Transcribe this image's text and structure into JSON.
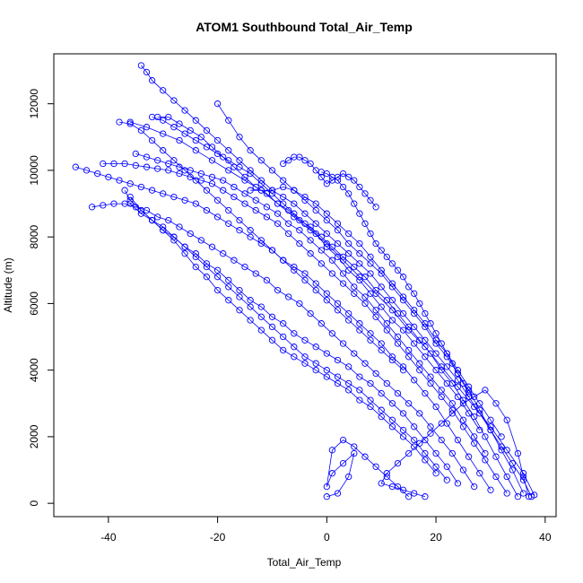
{
  "chart_data": {
    "type": "scatter",
    "title": "ATOM1 Southbound Total_Air_Temp",
    "xlabel": "Total_Air_Temp",
    "ylabel": "Altitude (m)",
    "xlim": [
      -50,
      42
    ],
    "ylim": [
      -400,
      13500
    ],
    "xticks": [
      -40,
      -20,
      0,
      20,
      40
    ],
    "yticks": [
      0,
      2000,
      4000,
      6000,
      8000,
      10000,
      12000
    ],
    "color": "#0000ff",
    "marker": "open-circle-with-lines",
    "grid": false,
    "legend": "none",
    "series": [
      {
        "x": [
          37.5,
          36,
          34,
          32,
          30,
          28,
          26,
          24,
          22,
          20,
          18,
          16,
          14,
          12,
          10,
          8,
          6,
          4,
          2,
          0,
          -2,
          -4,
          -6,
          -8,
          -10,
          -12,
          -14,
          -16,
          -18,
          -20,
          -22,
          -24,
          -26,
          -28,
          -30,
          -32,
          -33,
          -34
        ],
        "y": [
          200,
          700,
          1200,
          1700,
          2200,
          2700,
          3200,
          3700,
          4100,
          4500,
          4900,
          5300,
          5700,
          6100,
          6500,
          6900,
          7200,
          7500,
          7800,
          8100,
          8400,
          8700,
          9000,
          9200,
          9400,
          9700,
          10000,
          10300,
          10600,
          10900,
          11200,
          11500,
          11800,
          12100,
          12400,
          12700,
          12950,
          13150
        ]
      },
      {
        "x": [
          36,
          34,
          32,
          30,
          28,
          26,
          24,
          22,
          20,
          18,
          16,
          14,
          12,
          10,
          8,
          6,
          4,
          2,
          0,
          -2,
          -4,
          -6,
          -8,
          -10,
          -12,
          -14,
          -16,
          -18,
          -20
        ],
        "y": [
          300,
          1000,
          1600,
          2200,
          2800,
          3400,
          3900,
          4400,
          4800,
          5300,
          5700,
          6100,
          6500,
          6900,
          7200,
          7500,
          7800,
          8200,
          8500,
          8800,
          9100,
          9400,
          9700,
          10000,
          10300,
          10600,
          11000,
          11500,
          12000
        ]
      },
      {
        "x": [
          35,
          33,
          31,
          29,
          27,
          25,
          23,
          21,
          19,
          17,
          15,
          13,
          11,
          9,
          7,
          5,
          3,
          1,
          -1,
          -3,
          -5,
          -7,
          -9,
          -11,
          -13,
          -15,
          -17,
          -19,
          -21,
          -23,
          -25,
          -27,
          -29,
          -31
        ],
        "y": [
          200,
          800,
          1400,
          2000,
          2600,
          3100,
          3600,
          4000,
          4500,
          4900,
          5300,
          5700,
          6100,
          6400,
          6800,
          7100,
          7400,
          7700,
          8000,
          8300,
          8500,
          8800,
          9000,
          9300,
          9500,
          9800,
          10100,
          10400,
          10700,
          11000,
          11200,
          11400,
          11600,
          11600
        ]
      },
      {
        "x": [
          38,
          36,
          33,
          30,
          27,
          24,
          21,
          18,
          15,
          12,
          9,
          6,
          3,
          0,
          -3,
          -6,
          -9,
          -12,
          -15,
          -18,
          -21,
          -24,
          -27,
          -30,
          -33,
          -36
        ],
        "y": [
          250,
          900,
          1600,
          2300,
          2900,
          3500,
          4100,
          4700,
          5200,
          5800,
          6300,
          6800,
          7300,
          7800,
          8200,
          8600,
          9000,
          9400,
          9700,
          10000,
          10300,
          10600,
          10900,
          11100,
          11300,
          11450
        ]
      },
      {
        "x": [
          33,
          31,
          29,
          27,
          25,
          23,
          21,
          19,
          17,
          15,
          13,
          11,
          9,
          7,
          5,
          3,
          1,
          -1,
          -3,
          -5,
          -7,
          -9,
          -11,
          -13,
          -15,
          -17,
          -19,
          -21,
          -23,
          -25,
          -27,
          -29,
          -31,
          -33,
          -35,
          -37,
          -39,
          -41
        ],
        "y": [
          300,
          800,
          1300,
          1800,
          2300,
          2800,
          3200,
          3600,
          4000,
          4400,
          4800,
          5200,
          5600,
          6000,
          6300,
          6600,
          6900,
          7200,
          7500,
          7800,
          8100,
          8400,
          8600,
          8800,
          9000,
          9200,
          9400,
          9600,
          9700,
          9800,
          9900,
          10000,
          10050,
          10100,
          10150,
          10200,
          10200,
          10200
        ]
      },
      {
        "x": [
          30,
          28,
          26,
          24,
          22,
          20,
          18,
          16,
          14,
          12,
          10,
          8,
          6,
          4,
          2,
          0,
          -2,
          -4,
          -6,
          -8,
          -10,
          -12,
          -14,
          -16,
          -18,
          -20,
          -22,
          -24,
          -26,
          -28,
          -30,
          -32,
          -34,
          -36,
          -38,
          -40,
          -42,
          -44,
          -46
        ],
        "y": [
          400,
          900,
          1400,
          1900,
          2400,
          2900,
          3300,
          3700,
          4100,
          4400,
          4800,
          5100,
          5400,
          5700,
          6000,
          6300,
          6600,
          6900,
          7100,
          7300,
          7600,
          7800,
          8000,
          8200,
          8400,
          8600,
          8800,
          9000,
          9100,
          9200,
          9300,
          9400,
          9500,
          9600,
          9700,
          9800,
          9900,
          10000,
          10100
        ]
      },
      {
        "x": [
          27,
          25,
          23,
          21,
          19,
          17,
          15,
          13,
          11,
          9,
          7,
          5,
          3,
          1,
          -1,
          -3,
          -5,
          -7,
          -9,
          -11,
          -13,
          -15,
          -17,
          -19,
          -21,
          -23,
          -25,
          -27,
          -29,
          -31,
          -33,
          -35,
          -37,
          -39,
          -41,
          -43
        ],
        "y": [
          500,
          1000,
          1500,
          1900,
          2300,
          2700,
          3000,
          3300,
          3600,
          3900,
          4200,
          4500,
          4800,
          5100,
          5400,
          5700,
          6000,
          6200,
          6400,
          6700,
          6900,
          7100,
          7300,
          7500,
          7700,
          7900,
          8100,
          8300,
          8500,
          8600,
          8800,
          8900,
          9000,
          9000,
          8950,
          8900
        ]
      },
      {
        "x": [
          24,
          22,
          20,
          18,
          16,
          14,
          12,
          10,
          8,
          6,
          4,
          2,
          0,
          -2,
          -4,
          -6,
          -8,
          -10,
          -12,
          -14,
          -16,
          -18,
          -20,
          -22,
          -24,
          -26,
          -28,
          -30,
          -32,
          -34,
          -36
        ],
        "y": [
          600,
          1100,
          1500,
          1900,
          2300,
          2700,
          3000,
          3300,
          3600,
          3800,
          4100,
          4300,
          4500,
          4700,
          4900,
          5100,
          5400,
          5600,
          5900,
          6100,
          6400,
          6700,
          7000,
          7200,
          7500,
          7700,
          8000,
          8200,
          8500,
          8700,
          9000
        ]
      },
      {
        "x": [
          22,
          20,
          18,
          16,
          14,
          12,
          10,
          8,
          6,
          4,
          2,
          0,
          -2,
          -4,
          -6,
          -8,
          -10,
          -12,
          -14,
          -16,
          -18,
          -20,
          -22,
          -24,
          -26,
          -28,
          -30,
          -32,
          -34,
          -36,
          -37
        ],
        "y": [
          700,
          1100,
          1500,
          1900,
          2200,
          2500,
          2800,
          3100,
          3400,
          3600,
          3800,
          4000,
          4200,
          4400,
          4700,
          5000,
          5300,
          5600,
          5900,
          6200,
          6500,
          6800,
          7100,
          7400,
          7700,
          8000,
          8300,
          8500,
          8800,
          9100,
          9400
        ]
      },
      {
        "x": [
          20,
          18,
          16,
          14,
          12,
          10,
          8,
          6,
          4,
          2,
          0,
          -2,
          -4,
          -6,
          -8,
          -10,
          -12,
          -14,
          -16,
          -18,
          -20,
          -22,
          -24,
          -26,
          -28,
          -30,
          -32,
          -34,
          -36
        ],
        "y": [
          900,
          1300,
          1700,
          2000,
          2300,
          2600,
          2900,
          3100,
          3400,
          3600,
          3800,
          4000,
          4200,
          4400,
          4600,
          4900,
          5200,
          5500,
          5800,
          6100,
          6400,
          6800,
          7100,
          7500,
          7900,
          8200,
          8500,
          8800,
          9200
        ]
      },
      {
        "x": [
          15,
          13,
          11,
          9,
          7,
          5,
          3,
          1,
          0,
          1,
          3,
          5,
          4,
          2,
          0
        ],
        "y": [
          200,
          500,
          800,
          1100,
          1400,
          1700,
          1900,
          1600,
          500,
          900,
          1200,
          1500,
          800,
          300,
          200
        ]
      },
      {
        "x": [
          18,
          16,
          14,
          12,
          10,
          11,
          13,
          15,
          17,
          19,
          21,
          23,
          25,
          27,
          29,
          31,
          33,
          35,
          36,
          37
        ],
        "y": [
          200,
          300,
          400,
          500,
          600,
          900,
          1200,
          1500,
          1800,
          2100,
          2400,
          2700,
          3000,
          3200,
          3400,
          3000,
          2500,
          1500,
          800,
          200
        ]
      },
      {
        "x": [
          26,
          25,
          24,
          23,
          22,
          21,
          20,
          19,
          18,
          17,
          16,
          15,
          14,
          13,
          12,
          11,
          10,
          9,
          8,
          7,
          6,
          5,
          4,
          3,
          2,
          1,
          0,
          -1
        ],
        "y": [
          3300,
          3600,
          3900,
          4200,
          4500,
          4800,
          5100,
          5400,
          5700,
          6000,
          6300,
          6500,
          6800,
          7000,
          7200,
          7400,
          7600,
          7800,
          8100,
          8400,
          8700,
          9000,
          9300,
          9500,
          9700,
          9800,
          9900,
          9950
        ]
      },
      {
        "x": [
          32,
          30,
          28,
          26,
          24,
          22,
          20,
          18,
          16,
          14,
          12,
          10,
          8,
          6,
          4,
          2,
          0,
          -2,
          -4,
          -6,
          -8,
          -10,
          -12,
          -14
        ],
        "y": [
          2000,
          2500,
          3000,
          3500,
          4000,
          4500,
          4900,
          5400,
          5800,
          6200,
          6600,
          7000,
          7400,
          7800,
          8100,
          8400,
          8700,
          9000,
          9200,
          9400,
          9500,
          9400,
          9400,
          9400
        ]
      },
      {
        "x": [
          29,
          27,
          25,
          23,
          21,
          19,
          17,
          15,
          13,
          11,
          9,
          7,
          5,
          3,
          1,
          -1,
          -3,
          -5,
          -7,
          -9,
          -11,
          -13,
          -15,
          -17,
          -19,
          -21,
          -23,
          -25,
          -27,
          -29,
          -31,
          -33,
          -35
        ],
        "y": [
          1500,
          2000,
          2500,
          3000,
          3400,
          3800,
          4200,
          4600,
          5000,
          5400,
          5800,
          6200,
          6500,
          6900,
          7300,
          7600,
          7900,
          8200,
          8400,
          8700,
          8900,
          9100,
          9300,
          9500,
          9700,
          9800,
          9900,
          10000,
          10100,
          10200,
          10300,
          10400,
          10500
        ]
      },
      {
        "x": [
          9,
          8,
          7,
          6,
          5,
          4,
          3,
          2,
          1,
          0,
          -1,
          -2,
          -3,
          -4,
          -5,
          -6,
          -7,
          -8
        ],
        "y": [
          8900,
          9100,
          9300,
          9500,
          9700,
          9800,
          9900,
          9800,
          9700,
          9600,
          9800,
          10000,
          10200,
          10300,
          10400,
          10400,
          10300,
          10200
        ]
      },
      {
        "x": [
          28,
          26,
          24,
          22,
          20,
          18,
          16,
          14,
          12,
          10,
          8,
          6,
          4,
          2,
          0,
          -2,
          -4,
          -6,
          -8,
          -10,
          -12,
          -14,
          -16,
          -18,
          -20,
          -22,
          -24,
          -26,
          -28,
          -30,
          -32
        ],
        "y": [
          2200,
          2700,
          3200,
          3600,
          4000,
          4400,
          4800,
          5200,
          5500,
          5900,
          6300,
          6700,
          7000,
          7400,
          7700,
          8100,
          8400,
          8700,
          9000,
          9300,
          9600,
          9900,
          10100,
          10300,
          10500,
          10700,
          10900,
          11100,
          11300,
          11500,
          11600
        ]
      },
      {
        "x": [
          14,
          12,
          10,
          8,
          6,
          4,
          2,
          0,
          -2,
          -4,
          -6,
          -8,
          -10,
          -12,
          -14,
          -16,
          -18,
          -20,
          -22,
          -24,
          -26,
          -28,
          -30,
          -32,
          -34,
          -36,
          -38
        ],
        "y": [
          4000,
          4300,
          4600,
          4900,
          5200,
          5500,
          5800,
          6100,
          6400,
          6700,
          7000,
          7300,
          7600,
          7900,
          8200,
          8500,
          8800,
          9100,
          9400,
          9700,
          10000,
          10300,
          10600,
          10900,
          11200,
          11400,
          11450
        ]
      }
    ]
  }
}
